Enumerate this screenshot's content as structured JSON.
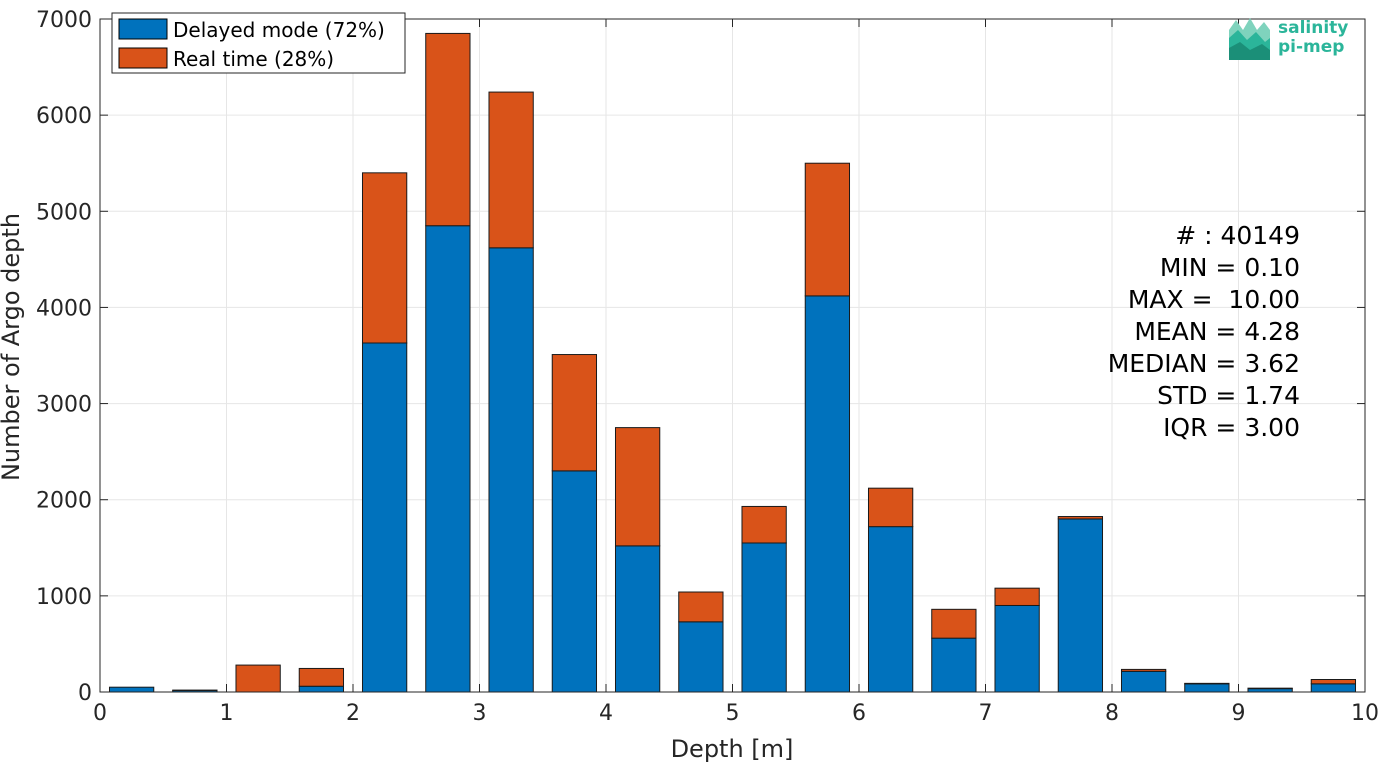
{
  "chart_data": {
    "type": "bar",
    "stacked": true,
    "xlabel": "Depth [m]",
    "ylabel": "Number of Argo depth",
    "xlim": [
      0,
      10
    ],
    "ylim": [
      0,
      7000
    ],
    "xticks": [
      "0",
      "1",
      "2",
      "3",
      "4",
      "5",
      "6",
      "7",
      "8",
      "9",
      "10"
    ],
    "yticks": [
      "0",
      "1000",
      "2000",
      "3000",
      "4000",
      "5000",
      "6000",
      "7000"
    ],
    "grid": true,
    "legend_position": "top-left",
    "bin_centers": [
      0.25,
      0.75,
      1.25,
      1.75,
      2.25,
      2.75,
      3.25,
      3.75,
      4.25,
      4.75,
      5.25,
      5.75,
      6.25,
      6.75,
      7.25,
      7.75,
      8.25,
      8.75,
      9.25,
      9.75
    ],
    "series": [
      {
        "name": "Delayed mode (72%)",
        "color": "#0072bd",
        "values": [
          50,
          15,
          0,
          60,
          3630,
          4850,
          4620,
          2300,
          1520,
          730,
          1550,
          4120,
          1720,
          560,
          900,
          1800,
          215,
          85,
          35,
          85
        ]
      },
      {
        "name": "Real time (28%)",
        "color": "#d95319",
        "values": [
          0,
          5,
          280,
          185,
          1770,
          2000,
          1620,
          1210,
          1230,
          310,
          380,
          1380,
          400,
          300,
          180,
          25,
          20,
          5,
          5,
          45
        ]
      }
    ],
    "stats": [
      "# : 40149",
      "MIN = 0.10",
      "MAX =  10.00",
      "MEAN = 4.28",
      "MEDIAN = 3.62",
      "STD = 1.74",
      "IQR = 3.00"
    ]
  },
  "logo": {
    "line1": "salinity",
    "line2": "pi-mep",
    "color": "#2bb59a"
  }
}
